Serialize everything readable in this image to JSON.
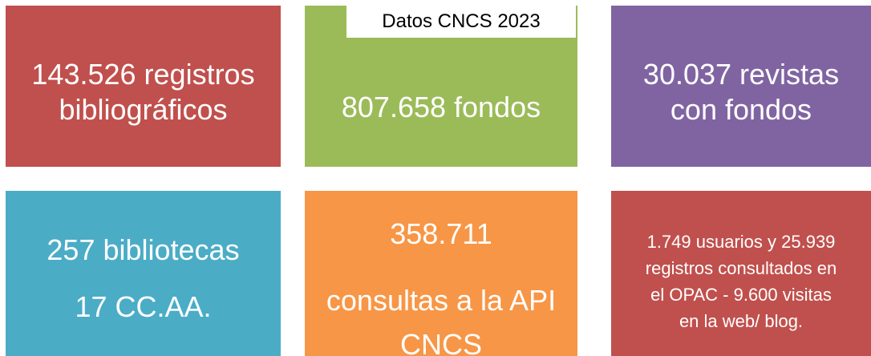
{
  "header": {
    "title": "Datos CNCS 2023"
  },
  "tiles": [
    {
      "lines": [
        "143.526 registros",
        "bibliográficos"
      ]
    },
    {
      "lines": [
        "807.658 fondos"
      ]
    },
    {
      "lines": [
        "30.037 revistas",
        "con fondos"
      ]
    },
    {
      "lines": [
        "257 bibliotecas",
        "17 CC.AA."
      ]
    },
    {
      "lines": [
        "358.711",
        "consultas a la API",
        "CNCS"
      ]
    },
    {
      "lines": [
        "1.749 usuarios y 25.939",
        "registros consultados en",
        "el OPAC - 9.600 visitas",
        "en la web/ blog."
      ]
    }
  ]
}
